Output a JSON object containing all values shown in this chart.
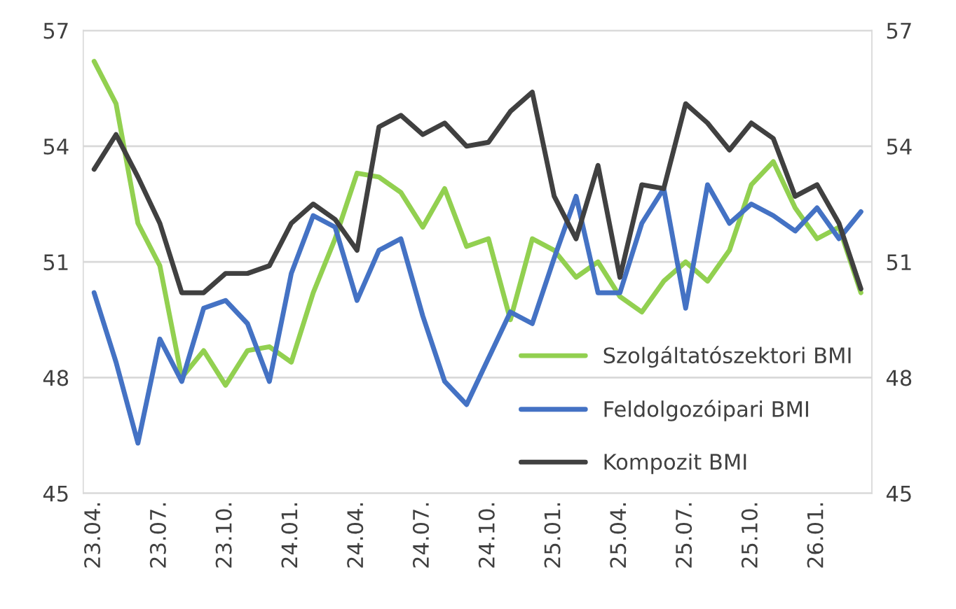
{
  "chart_data": {
    "type": "line",
    "categories": [
      "23.04.",
      null,
      null,
      "23.07.",
      null,
      null,
      "23.10.",
      null,
      null,
      "24.01.",
      null,
      null,
      "24.04.",
      null,
      null,
      "24.07.",
      null,
      null,
      "24.10.",
      null,
      null,
      "25.01.",
      null,
      null,
      "25.04.",
      null,
      null,
      "25.07.",
      null,
      null,
      "25.10.",
      null,
      null,
      "26.01.",
      null,
      null
    ],
    "series": [
      {
        "name": "Szolgáltatószektori BMI",
        "color": "#92d050",
        "values": [
          56.2,
          55.1,
          52.0,
          50.9,
          48.0,
          48.7,
          47.8,
          48.7,
          48.8,
          48.4,
          50.2,
          51.6,
          53.3,
          53.2,
          52.8,
          51.9,
          52.9,
          51.4,
          51.6,
          49.5,
          51.6,
          51.3,
          50.6,
          51.0,
          50.1,
          49.7,
          50.5,
          51.0,
          50.5,
          51.3,
          53.0,
          53.6,
          52.4,
          51.6,
          51.9,
          50.2
        ]
      },
      {
        "name": "Feldolgozóipari BMI",
        "color": "#4472c4",
        "values": [
          50.2,
          48.4,
          46.3,
          49.0,
          47.9,
          49.8,
          50.0,
          49.4,
          47.9,
          50.7,
          52.2,
          51.9,
          50.0,
          51.3,
          51.6,
          49.6,
          47.9,
          47.3,
          48.5,
          49.7,
          49.4,
          51.1,
          52.7,
          50.2,
          50.2,
          52.0,
          52.9,
          49.8,
          53.0,
          52.0,
          52.5,
          52.2,
          51.8,
          52.4,
          51.6,
          52.3
        ]
      },
      {
        "name": "Kompozit BMI",
        "color": "#404040",
        "values": [
          53.4,
          54.3,
          53.2,
          52.0,
          50.2,
          50.2,
          50.7,
          50.7,
          50.9,
          52.0,
          52.5,
          52.1,
          51.3,
          54.5,
          54.8,
          54.3,
          54.6,
          54.0,
          54.1,
          54.9,
          55.4,
          52.7,
          51.6,
          53.5,
          50.6,
          53.0,
          52.9,
          55.1,
          54.6,
          53.9,
          54.6,
          54.2,
          52.7,
          53.0,
          52.0,
          50.3
        ]
      }
    ],
    "ylim": [
      45,
      57
    ],
    "yticks": [
      45,
      48,
      51,
      54,
      57
    ],
    "y2lim": [
      45,
      57
    ],
    "y2ticks": [
      45,
      48,
      51,
      54,
      57
    ],
    "grid": "y",
    "legend": "bottom right",
    "marker": "none",
    "line_style": "solid"
  }
}
